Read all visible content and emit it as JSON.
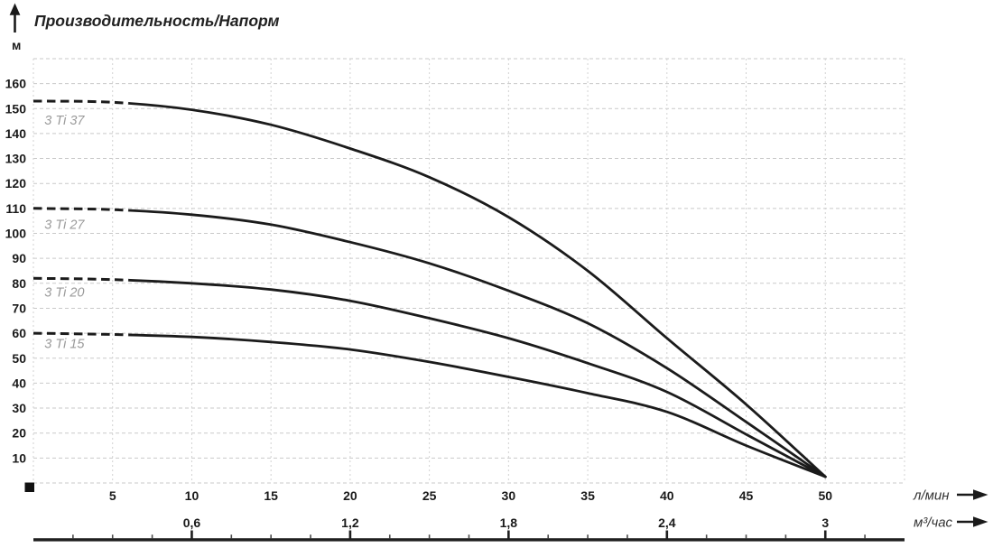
{
  "chart_data": {
    "type": "line",
    "title": "Производительность/Напорм",
    "ylabel": "м",
    "xlabel_primary": "л/мин",
    "xlabel_secondary": "м³/час",
    "y_ticks": [
      10,
      20,
      30,
      40,
      50,
      60,
      70,
      80,
      90,
      100,
      110,
      120,
      130,
      140,
      150,
      160
    ],
    "x_ticks_lmin": [
      5,
      10,
      15,
      20,
      25,
      30,
      35,
      40,
      45,
      50
    ],
    "x_ticks_m3h": [
      {
        "q_lmin": 10,
        "label": "0,6"
      },
      {
        "q_lmin": 20,
        "label": "1,2"
      },
      {
        "q_lmin": 30,
        "label": "1,8"
      },
      {
        "q_lmin": 40,
        "label": "2,4"
      },
      {
        "q_lmin": 50,
        "label": "3"
      }
    ],
    "q_range_lmin": [
      0,
      55
    ],
    "h_range_m": [
      0,
      170
    ],
    "grid": "dashed, every 5 л/мин and 10 м",
    "dashed_until_q": 6,
    "series": [
      {
        "name": "3 Ti 37",
        "points": [
          [
            0,
            153
          ],
          [
            5,
            152.5
          ],
          [
            10,
            149.5
          ],
          [
            15,
            143.5
          ],
          [
            20,
            134
          ],
          [
            25,
            122.5
          ],
          [
            30,
            106.5
          ],
          [
            35,
            85
          ],
          [
            40,
            58
          ],
          [
            45,
            31.5
          ],
          [
            50,
            2.5
          ]
        ],
        "label_at": [
          0.7,
          145.3
        ]
      },
      {
        "name": "3 Ti 27",
        "points": [
          [
            0,
            110
          ],
          [
            5,
            109.5
          ],
          [
            10,
            107.5
          ],
          [
            15,
            103.5
          ],
          [
            20,
            96.5
          ],
          [
            25,
            88
          ],
          [
            30,
            77
          ],
          [
            35,
            64
          ],
          [
            40,
            46
          ],
          [
            45,
            24.5
          ],
          [
            50,
            2.5
          ]
        ],
        "label_at": [
          0.7,
          103.7
        ]
      },
      {
        "name": "3 Ti 20",
        "points": [
          [
            0,
            82
          ],
          [
            5,
            81.5
          ],
          [
            10,
            80
          ],
          [
            15,
            77.5
          ],
          [
            20,
            73
          ],
          [
            25,
            66
          ],
          [
            30,
            58
          ],
          [
            35,
            48
          ],
          [
            40,
            36.5
          ],
          [
            45,
            19.5
          ],
          [
            50,
            2.5
          ]
        ],
        "label_at": [
          0.7,
          76.5
        ]
      },
      {
        "name": "3 Ti 15",
        "points": [
          [
            0,
            60
          ],
          [
            5,
            59.5
          ],
          [
            10,
            58.5
          ],
          [
            15,
            56.5
          ],
          [
            20,
            53.5
          ],
          [
            25,
            48.5
          ],
          [
            30,
            42.5
          ],
          [
            35,
            36
          ],
          [
            40,
            28.5
          ],
          [
            45,
            15
          ],
          [
            50,
            2.5
          ]
        ],
        "label_at": [
          0.7,
          55.8
        ]
      }
    ],
    "colors": {
      "curve": "#1b1b1b",
      "grid": "#c9c9c9",
      "curve_label": "#9a9a9a",
      "text": "#1a1a1a",
      "accent_black": "#1f1f1f"
    },
    "legend_position": "labels under curve start, left side"
  }
}
